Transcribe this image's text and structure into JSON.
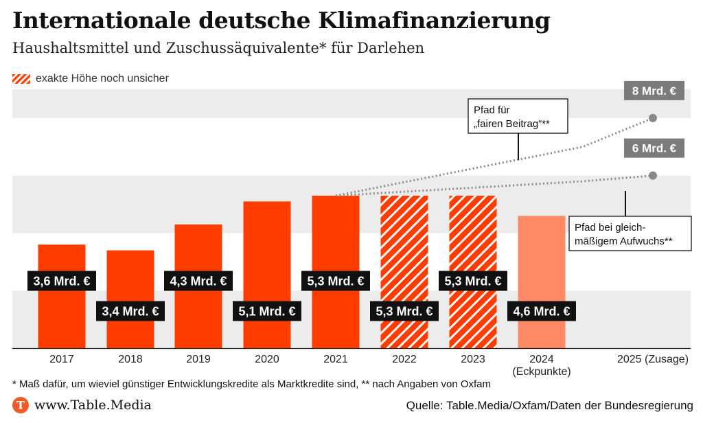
{
  "header": {
    "title": "Internationale deutsche Klimafinanzierung",
    "subtitle": "Haushaltsmittel und Zuschussäquivalente* für Darlehen"
  },
  "legend": {
    "label": "exakte Höhe noch unsicher"
  },
  "chart_data": {
    "type": "bar",
    "categories": [
      "2017",
      "2018",
      "2019",
      "2020",
      "2021",
      "2022",
      "2023",
      "2024",
      "2025 (Zusage)"
    ],
    "category_sublabels": [
      "",
      "",
      "",
      "",
      "",
      "",
      "",
      "(Eckpunkte)",
      ""
    ],
    "values": [
      3.6,
      3.4,
      4.3,
      5.1,
      5.3,
      5.3,
      5.3,
      4.6,
      null
    ],
    "value_labels": [
      "3,6 Mrd. €",
      "3,4 Mrd. €",
      "4,3 Mrd. €",
      "5,1 Mrd. €",
      "5,3 Mrd. €",
      "5,3 Mrd. €",
      "5,3 Mrd. €",
      "4,6 Mrd. €",
      ""
    ],
    "bar_style": [
      "solid",
      "solid",
      "solid",
      "solid",
      "solid",
      "hatched",
      "hatched",
      "light",
      "none"
    ],
    "ylim": [
      0,
      9
    ],
    "ygrid_bands": [
      [
        0,
        2
      ],
      [
        4,
        6
      ],
      [
        8,
        9
      ]
    ],
    "paths": [
      {
        "name": "Pfad für „fairen Beitrag“**",
        "x": [
          "2021",
          "2024",
          "2025 (Zusage)"
        ],
        "values": [
          5.3,
          7.0,
          8.0
        ],
        "end_label": "8 Mrd. €"
      },
      {
        "name": "Pfad bei gleichmäßigem Aufwuchs**",
        "x": [
          "2021",
          "2024",
          "2025 (Zusage)"
        ],
        "values": [
          5.3,
          5.8,
          6.0
        ],
        "end_label": "6 Mrd. €"
      }
    ],
    "annotations": [
      {
        "lines": [
          "Pfad für",
          "„fairen Beitrag“**"
        ]
      },
      {
        "lines": [
          "Pfad bei gleich-",
          "mäßigem Aufwuchs**"
        ]
      }
    ]
  },
  "colors": {
    "bar": "#ff3d00",
    "bar_light": "#ff8a65",
    "band": "#ececec",
    "label_bg": "#111111",
    "path": "#888888",
    "end_label_bg": "#7b7b7b",
    "logo": "#f05a28"
  },
  "footer": {
    "footnote": "* Maß dafür, um wieviel günstiger Entwicklungskredite als Marktkredite sind, ** nach Angaben von Oxfam",
    "brand": "www.Table.Media",
    "source": "Quelle: Table.Media/Oxfam/Daten der Bundesregierung"
  }
}
